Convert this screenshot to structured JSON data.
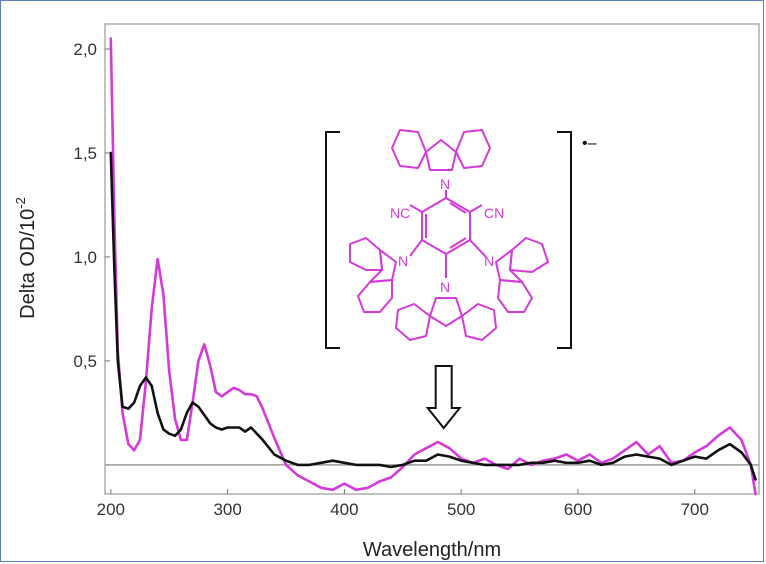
{
  "chart_data": {
    "type": "line",
    "xlabel": "Wavelength/nm",
    "ylabel": "Delta OD/10",
    "ylabel_sup": "-2",
    "xlim": [
      195,
      755
    ],
    "ylim": [
      -0.14,
      2.12
    ],
    "xticks": [
      {
        "value": 200,
        "label": "200"
      },
      {
        "value": 300,
        "label": "300"
      },
      {
        "value": 400,
        "label": "400"
      },
      {
        "value": 500,
        "label": "500"
      },
      {
        "value": 600,
        "label": "600"
      },
      {
        "value": 700,
        "label": "700"
      }
    ],
    "yticks": [
      {
        "value": 0.5,
        "label": "0,5"
      },
      {
        "value": 1.0,
        "label": "1,0"
      },
      {
        "value": 1.5,
        "label": "1,5"
      },
      {
        "value": 2.0,
        "label": "2,0"
      }
    ],
    "baseline": 0,
    "arrow_at": 485,
    "series": [
      {
        "color": "#d43ad9",
        "points": [
          [
            200,
            2.05
          ],
          [
            203,
            1.2
          ],
          [
            206,
            0.55
          ],
          [
            210,
            0.25
          ],
          [
            215,
            0.1
          ],
          [
            220,
            0.07
          ],
          [
            225,
            0.12
          ],
          [
            230,
            0.4
          ],
          [
            235,
            0.75
          ],
          [
            240,
            0.99
          ],
          [
            245,
            0.82
          ],
          [
            250,
            0.45
          ],
          [
            255,
            0.22
          ],
          [
            260,
            0.12
          ],
          [
            265,
            0.12
          ],
          [
            270,
            0.3
          ],
          [
            275,
            0.5
          ],
          [
            280,
            0.58
          ],
          [
            285,
            0.48
          ],
          [
            290,
            0.35
          ],
          [
            295,
            0.33
          ],
          [
            300,
            0.35
          ],
          [
            305,
            0.37
          ],
          [
            310,
            0.36
          ],
          [
            315,
            0.34
          ],
          [
            320,
            0.34
          ],
          [
            325,
            0.33
          ],
          [
            330,
            0.27
          ],
          [
            340,
            0.13
          ],
          [
            350,
            0.0
          ],
          [
            360,
            -0.05
          ],
          [
            370,
            -0.08
          ],
          [
            380,
            -0.11
          ],
          [
            390,
            -0.12
          ],
          [
            400,
            -0.09
          ],
          [
            410,
            -0.12
          ],
          [
            420,
            -0.11
          ],
          [
            430,
            -0.08
          ],
          [
            440,
            -0.06
          ],
          [
            450,
            -0.01
          ],
          [
            460,
            0.05
          ],
          [
            470,
            0.08
          ],
          [
            480,
            0.11
          ],
          [
            490,
            0.08
          ],
          [
            500,
            0.03
          ],
          [
            510,
            0.01
          ],
          [
            520,
            0.03
          ],
          [
            530,
            0.0
          ],
          [
            540,
            -0.02
          ],
          [
            550,
            0.03
          ],
          [
            560,
            0.0
          ],
          [
            570,
            0.02
          ],
          [
            580,
            0.03
          ],
          [
            590,
            0.05
          ],
          [
            600,
            0.02
          ],
          [
            610,
            0.05
          ],
          [
            620,
            0.01
          ],
          [
            630,
            0.03
          ],
          [
            640,
            0.07
          ],
          [
            650,
            0.11
          ],
          [
            660,
            0.05
          ],
          [
            670,
            0.09
          ],
          [
            680,
            0.01
          ],
          [
            690,
            0.02
          ],
          [
            700,
            0.06
          ],
          [
            710,
            0.09
          ],
          [
            720,
            0.14
          ],
          [
            730,
            0.18
          ],
          [
            740,
            0.12
          ],
          [
            748,
            0.0
          ],
          [
            752,
            -0.14
          ]
        ]
      },
      {
        "color": "#111111",
        "points": [
          [
            200,
            1.5
          ],
          [
            203,
            0.95
          ],
          [
            206,
            0.5
          ],
          [
            210,
            0.28
          ],
          [
            215,
            0.27
          ],
          [
            220,
            0.3
          ],
          [
            225,
            0.38
          ],
          [
            230,
            0.42
          ],
          [
            235,
            0.38
          ],
          [
            240,
            0.25
          ],
          [
            245,
            0.17
          ],
          [
            250,
            0.15
          ],
          [
            255,
            0.14
          ],
          [
            260,
            0.17
          ],
          [
            265,
            0.25
          ],
          [
            270,
            0.3
          ],
          [
            275,
            0.28
          ],
          [
            280,
            0.24
          ],
          [
            285,
            0.2
          ],
          [
            290,
            0.18
          ],
          [
            295,
            0.17
          ],
          [
            300,
            0.18
          ],
          [
            305,
            0.18
          ],
          [
            310,
            0.18
          ],
          [
            315,
            0.16
          ],
          [
            320,
            0.18
          ],
          [
            325,
            0.15
          ],
          [
            330,
            0.12
          ],
          [
            340,
            0.05
          ],
          [
            350,
            0.02
          ],
          [
            360,
            0.0
          ],
          [
            370,
            0.0
          ],
          [
            380,
            0.01
          ],
          [
            390,
            0.02
          ],
          [
            400,
            0.01
          ],
          [
            410,
            0.0
          ],
          [
            420,
            0.0
          ],
          [
            430,
            0.0
          ],
          [
            440,
            -0.01
          ],
          [
            450,
            0.0
          ],
          [
            460,
            0.02
          ],
          [
            470,
            0.02
          ],
          [
            480,
            0.05
          ],
          [
            490,
            0.04
          ],
          [
            500,
            0.02
          ],
          [
            510,
            0.01
          ],
          [
            520,
            0.0
          ],
          [
            530,
            0.0
          ],
          [
            540,
            0.0
          ],
          [
            550,
            0.0
          ],
          [
            560,
            0.01
          ],
          [
            570,
            0.01
          ],
          [
            580,
            0.02
          ],
          [
            590,
            0.01
          ],
          [
            600,
            0.01
          ],
          [
            610,
            0.02
          ],
          [
            620,
            0.0
          ],
          [
            630,
            0.01
          ],
          [
            640,
            0.04
          ],
          [
            650,
            0.05
          ],
          [
            660,
            0.04
          ],
          [
            670,
            0.03
          ],
          [
            680,
            0.0
          ],
          [
            690,
            0.02
          ],
          [
            700,
            0.04
          ],
          [
            710,
            0.03
          ],
          [
            720,
            0.07
          ],
          [
            730,
            0.1
          ],
          [
            740,
            0.06
          ],
          [
            748,
            0.0
          ],
          [
            752,
            -0.07
          ]
        ]
      }
    ],
    "structure": {
      "labels": {
        "nc": "NC",
        "cn": "CN",
        "n_top": "N",
        "n_left": "N",
        "n_right": "N",
        "n_bottom": "N"
      },
      "charge": "•–"
    }
  }
}
